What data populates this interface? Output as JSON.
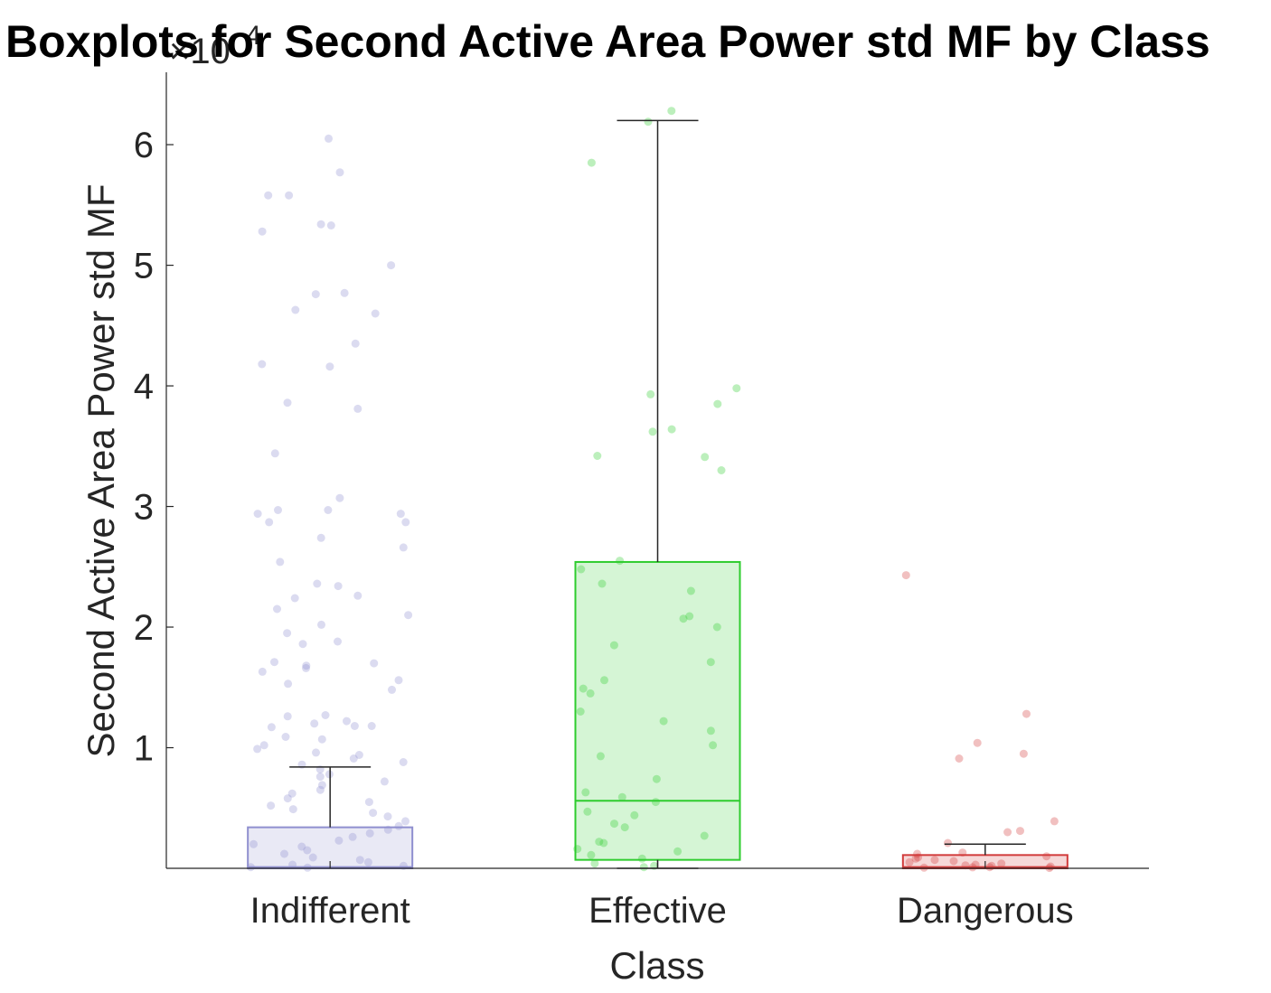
{
  "chart_data": {
    "type": "boxplot",
    "title": "Boxplots for Second Active Area Power std MF by Class",
    "xlabel": "Class",
    "ylabel": "Second Active Area Power std MF",
    "y_exponent_base": "×10",
    "y_exponent_power": "4",
    "ylim": [
      0,
      66000
    ],
    "yticks": [
      10000,
      20000,
      30000,
      40000,
      50000,
      60000
    ],
    "ytick_labels": [
      "1",
      "2",
      "3",
      "4",
      "5",
      "6"
    ],
    "categories": [
      "Indifferent",
      "Effective",
      "Dangerous"
    ],
    "series": [
      {
        "category": "Indifferent",
        "color": "#8f8fcf",
        "box": {
          "q1": 0,
          "median": 100,
          "q3": 3400,
          "whisker_low": 0,
          "whisker_high": 8400
        },
        "points": [
          60500,
          57700,
          55800,
          55800,
          53400,
          53300,
          52800,
          50000,
          47700,
          47600,
          46300,
          46000,
          43500,
          41800,
          41600,
          38600,
          38100,
          34400,
          30700,
          29700,
          29700,
          29400,
          29400,
          28700,
          28700,
          27400,
          26600,
          25400,
          23600,
          23400,
          22600,
          22400,
          21500,
          21000,
          20200,
          19500,
          18800,
          18600,
          17100,
          17000,
          16800,
          16600,
          16300,
          15600,
          15300,
          14800,
          12700,
          12600,
          12200,
          12000,
          11800,
          11800,
          11700,
          10900,
          10700,
          10200,
          9900,
          9600,
          9400,
          9100,
          8800,
          8600,
          8200,
          7800,
          7600,
          7200,
          6900,
          6500,
          6200,
          5800,
          5500,
          5200,
          4900,
          4600,
          4300,
          3900,
          3500,
          3200,
          2900,
          2600,
          2300,
          2000,
          1800,
          1500,
          1200,
          900,
          700,
          500,
          300,
          200,
          100,
          50
        ]
      },
      {
        "category": "Effective",
        "color": "#2ecc2e",
        "box": {
          "q1": 700,
          "median": 5600,
          "q3": 25400,
          "whisker_low": 0,
          "whisker_high": 62000
        },
        "points": [
          62800,
          61900,
          58500,
          39800,
          39300,
          38500,
          36400,
          36200,
          34200,
          34100,
          33000,
          25500,
          24800,
          23600,
          23000,
          20900,
          20700,
          20000,
          18500,
          17100,
          15600,
          14900,
          14500,
          13000,
          12200,
          11400,
          10200,
          9300,
          7400,
          6300,
          5900,
          5500,
          4700,
          4400,
          3700,
          3400,
          2700,
          2200,
          2100,
          1600,
          1400,
          1100,
          800,
          400,
          200,
          100
        ]
      },
      {
        "category": "Dangerous",
        "color": "#d23c3c",
        "box": {
          "q1": 0,
          "median": 100,
          "q3": 1100,
          "whisker_low": 0,
          "whisker_high": 2000
        },
        "points": [
          24300,
          12800,
          10400,
          9500,
          9100,
          3900,
          3100,
          3000,
          2100,
          1300,
          1200,
          1000,
          900,
          800,
          700,
          600,
          500,
          400,
          300,
          250,
          200,
          150,
          100,
          80,
          50,
          30
        ]
      }
    ],
    "grid": false,
    "legend": "none"
  }
}
